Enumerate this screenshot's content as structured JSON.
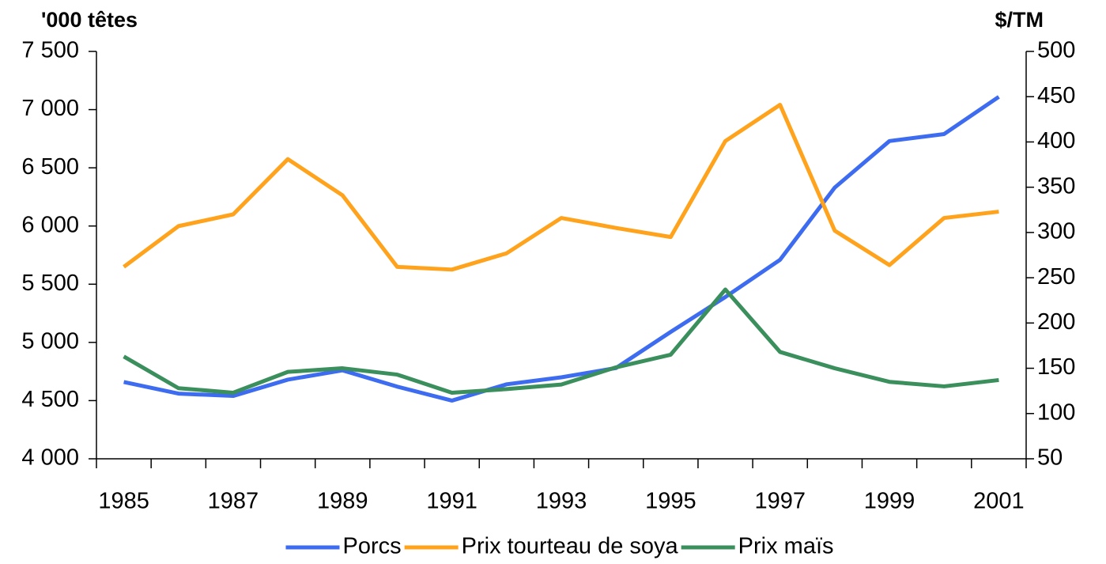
{
  "chart_data": {
    "type": "line",
    "y_label": "'000 têtes",
    "y2_label": "$/TM",
    "categories": [
      "1985",
      null,
      "1987",
      null,
      "1989",
      null,
      "1991",
      null,
      "1993",
      null,
      "1995",
      null,
      "1997",
      null,
      "1999",
      null,
      "2001"
    ],
    "series": [
      {
        "name": "Porcs",
        "color": "#3d6cf0",
        "values": [
          4660,
          4560,
          4540,
          4680,
          4760,
          4620,
          4500,
          4640,
          4700,
          4780,
          5090,
          5390,
          5710,
          6330,
          6730,
          6790,
          7110
        ]
      },
      {
        "name": "Prix tourteau de soya",
        "color": "#ffa21c",
        "axis": "y2",
        "values": [
          262,
          307,
          320,
          381,
          341,
          262,
          259,
          277,
          316,
          305,
          295,
          401,
          441,
          302,
          264,
          316,
          323
        ]
      },
      {
        "name": "Prix maïs",
        "color": "#3a8f5c",
        "axis": "y2",
        "values": [
          163,
          128,
          123,
          146,
          150,
          143,
          123,
          127,
          132,
          151,
          165,
          237,
          168,
          150,
          135,
          130,
          137
        ]
      }
    ],
    "ylim": [
      4000,
      7500
    ],
    "yticks": [
      {
        "value": 4000,
        "label": "4 000"
      },
      {
        "value": 4500,
        "label": "4 500"
      },
      {
        "value": 5000,
        "label": "5 000"
      },
      {
        "value": 5500,
        "label": "5 500"
      },
      {
        "value": 6000,
        "label": "6 000"
      },
      {
        "value": 6500,
        "label": "6 500"
      },
      {
        "value": 7000,
        "label": "7 000"
      },
      {
        "value": 7500,
        "label": "7 500"
      }
    ],
    "y2lim": [
      50,
      500
    ],
    "y2ticks": [
      50,
      100,
      150,
      200,
      250,
      300,
      350,
      400,
      450,
      500
    ],
    "legend": "bottom"
  }
}
